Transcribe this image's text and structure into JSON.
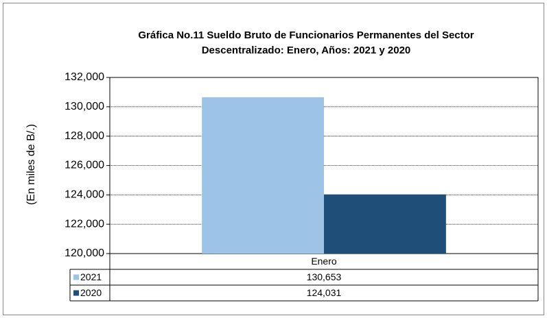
{
  "chart_data": {
    "type": "bar",
    "title": [
      "Gráfica No.11 Sueldo Bruto de Funcionarios Permanentes del Sector",
      "Descentralizado: Enero, Años: 2021 y 2020"
    ],
    "ylabel": "(En miles de B/.)",
    "categories": [
      "Enero"
    ],
    "series": [
      {
        "name": "2021",
        "color": "#9dc3e6",
        "values": [
          130653
        ],
        "value_labels": [
          "130,653"
        ]
      },
      {
        "name": "2020",
        "color": "#1f4e79",
        "values": [
          124031
        ],
        "value_labels": [
          "124,031"
        ]
      }
    ],
    "ylim": [
      120000,
      132000
    ],
    "yticks": [
      {
        "value": 120000,
        "label": "120,000"
      },
      {
        "value": 122000,
        "label": "122,000"
      },
      {
        "value": 124000,
        "label": "124,000"
      },
      {
        "value": 126000,
        "label": "126,000"
      },
      {
        "value": 128000,
        "label": "128,000"
      },
      {
        "value": 130000,
        "label": "130,000"
      },
      {
        "value": 132000,
        "label": "132,000"
      }
    ],
    "grid": true
  }
}
